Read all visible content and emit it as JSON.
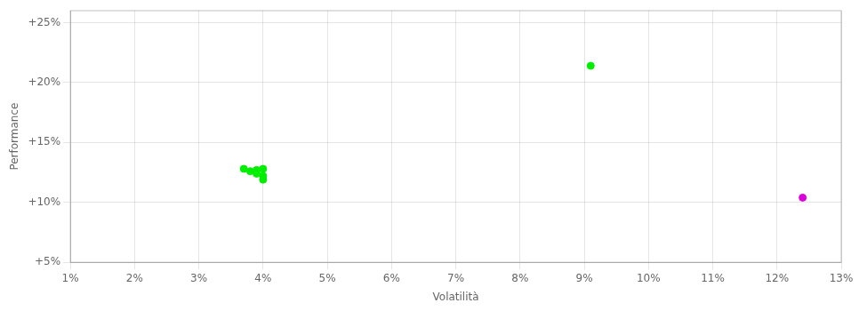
{
  "chart_data": {
    "type": "scatter",
    "xlabel": "Volatilità",
    "ylabel": "Performance",
    "series": [
      {
        "color": "#00ee00",
        "x": [
          0.037,
          0.038,
          0.039,
          0.039,
          0.04,
          0.04,
          0.04,
          0.091
        ],
        "values": [
          0.128,
          0.126,
          0.127,
          0.124,
          0.128,
          0.122,
          0.119,
          0.214
        ]
      },
      {
        "color": "#dd00dd",
        "x": [
          0.124
        ],
        "values": [
          0.104
        ]
      }
    ],
    "xlim": [
      0.01,
      0.13
    ],
    "ylim": [
      0.05,
      0.26
    ],
    "xticks": [
      {
        "value": 0.01,
        "label": "1%"
      },
      {
        "value": 0.02,
        "label": "2%"
      },
      {
        "value": 0.03,
        "label": "3%"
      },
      {
        "value": 0.04,
        "label": "4%"
      },
      {
        "value": 0.05,
        "label": "5%"
      },
      {
        "value": 0.06,
        "label": "6%"
      },
      {
        "value": 0.07,
        "label": "7%"
      },
      {
        "value": 0.08,
        "label": "8%"
      },
      {
        "value": 0.09,
        "label": "9%"
      },
      {
        "value": 0.1,
        "label": "10%"
      },
      {
        "value": 0.11,
        "label": "11%"
      },
      {
        "value": 0.12,
        "label": "12%"
      },
      {
        "value": 0.13,
        "label": "13%"
      }
    ],
    "yticks": [
      {
        "value": 0.05,
        "label": "+5%"
      },
      {
        "value": 0.1,
        "label": "+10%"
      },
      {
        "value": 0.15,
        "label": "+15%"
      },
      {
        "value": 0.2,
        "label": "+20%"
      },
      {
        "value": 0.25,
        "label": "+25%"
      }
    ],
    "grid": true
  }
}
